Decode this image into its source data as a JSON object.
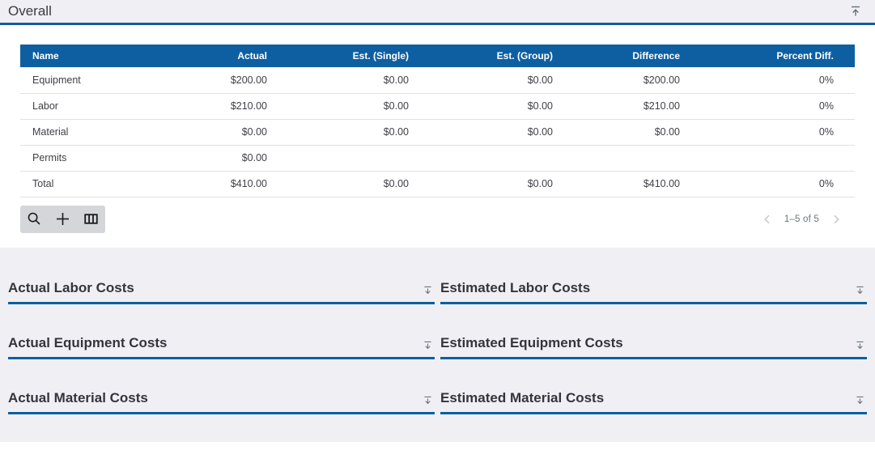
{
  "colors": {
    "accent_blue": "#0d5fa1",
    "page_background": "#f0f0f4",
    "card_background": "#ffffff",
    "toolbar_background": "#d5d6da"
  },
  "header": {
    "title": "Overall",
    "collapse_icon": "collapse-to-top-icon"
  },
  "table": {
    "columns": [
      "Name",
      "Actual",
      "Est. (Single)",
      "Est. (Group)",
      "Difference",
      "Percent Diff."
    ],
    "rows": [
      [
        "Equipment",
        "$200.00",
        "$0.00",
        "$0.00",
        "$200.00",
        "0%"
      ],
      [
        "Labor",
        "$210.00",
        "$0.00",
        "$0.00",
        "$210.00",
        "0%"
      ],
      [
        "Material",
        "$0.00",
        "$0.00",
        "$0.00",
        "$0.00",
        "0%"
      ],
      [
        "Permits",
        "$0.00",
        "",
        "",
        "",
        ""
      ],
      [
        "Total",
        "$410.00",
        "$0.00",
        "$0.00",
        "$410.00",
        "0%"
      ]
    ]
  },
  "toolbar": {
    "buttons": [
      "search",
      "add",
      "column-selector"
    ]
  },
  "pagination": {
    "prev_icon": "chevron-left-icon",
    "label": "1–5 of 5",
    "next_icon": "chevron-right-icon"
  },
  "panels": [
    {
      "title": "Actual Labor Costs",
      "expand_icon": "expand-down-icon"
    },
    {
      "title": "Estimated Labor Costs",
      "expand_icon": "expand-down-icon"
    },
    {
      "title": "Actual Equipment Costs",
      "expand_icon": "expand-down-icon"
    },
    {
      "title": "Estimated Equipment Costs",
      "expand_icon": "expand-down-icon"
    },
    {
      "title": "Actual Material Costs",
      "expand_icon": "expand-down-icon"
    },
    {
      "title": "Estimated Material Costs",
      "expand_icon": "expand-down-icon"
    }
  ]
}
